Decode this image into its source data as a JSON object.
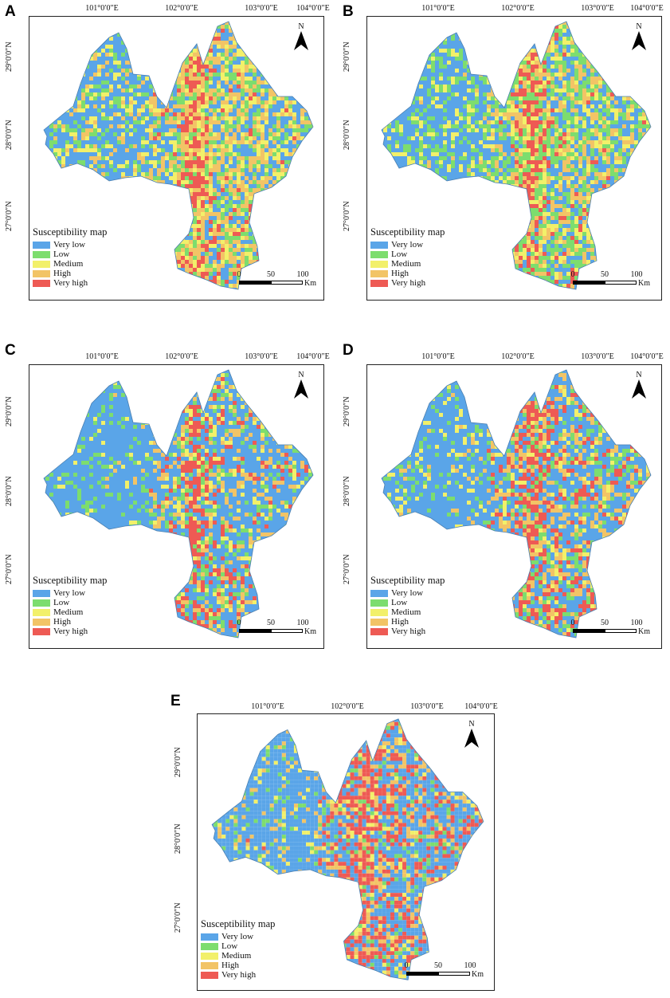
{
  "legend": {
    "title": "Susceptibility map",
    "classes": [
      {
        "label": "Very low",
        "color": "#5aa5e8"
      },
      {
        "label": "Low",
        "color": "#7ddd6e"
      },
      {
        "label": "Medium",
        "color": "#f2f06a"
      },
      {
        "label": "High",
        "color": "#f2c466"
      },
      {
        "label": "Very high",
        "color": "#ee5a54"
      }
    ]
  },
  "graticule": {
    "longitudes": [
      "101°0′0″E",
      "102°0′0″E",
      "103°0′0″E",
      "104°0′0″E"
    ],
    "latitudes": [
      "29°0′0″N",
      "28°0′0″N",
      "27°0′0″N"
    ]
  },
  "north_label": "N",
  "scale_bar": {
    "ticks": [
      "0",
      "50",
      "100"
    ],
    "unit": "Km"
  },
  "panels": [
    {
      "label": "A",
      "mix": [
        0.22,
        0.17,
        0.16,
        0.33,
        0.12
      ]
    },
    {
      "label": "B",
      "mix": [
        0.24,
        0.27,
        0.16,
        0.24,
        0.09
      ]
    },
    {
      "label": "C",
      "mix": [
        0.48,
        0.12,
        0.09,
        0.15,
        0.16
      ]
    },
    {
      "label": "D",
      "mix": [
        0.42,
        0.12,
        0.1,
        0.16,
        0.2
      ]
    },
    {
      "label": "E",
      "mix": [
        0.42,
        0.08,
        0.07,
        0.14,
        0.29
      ]
    }
  ]
}
